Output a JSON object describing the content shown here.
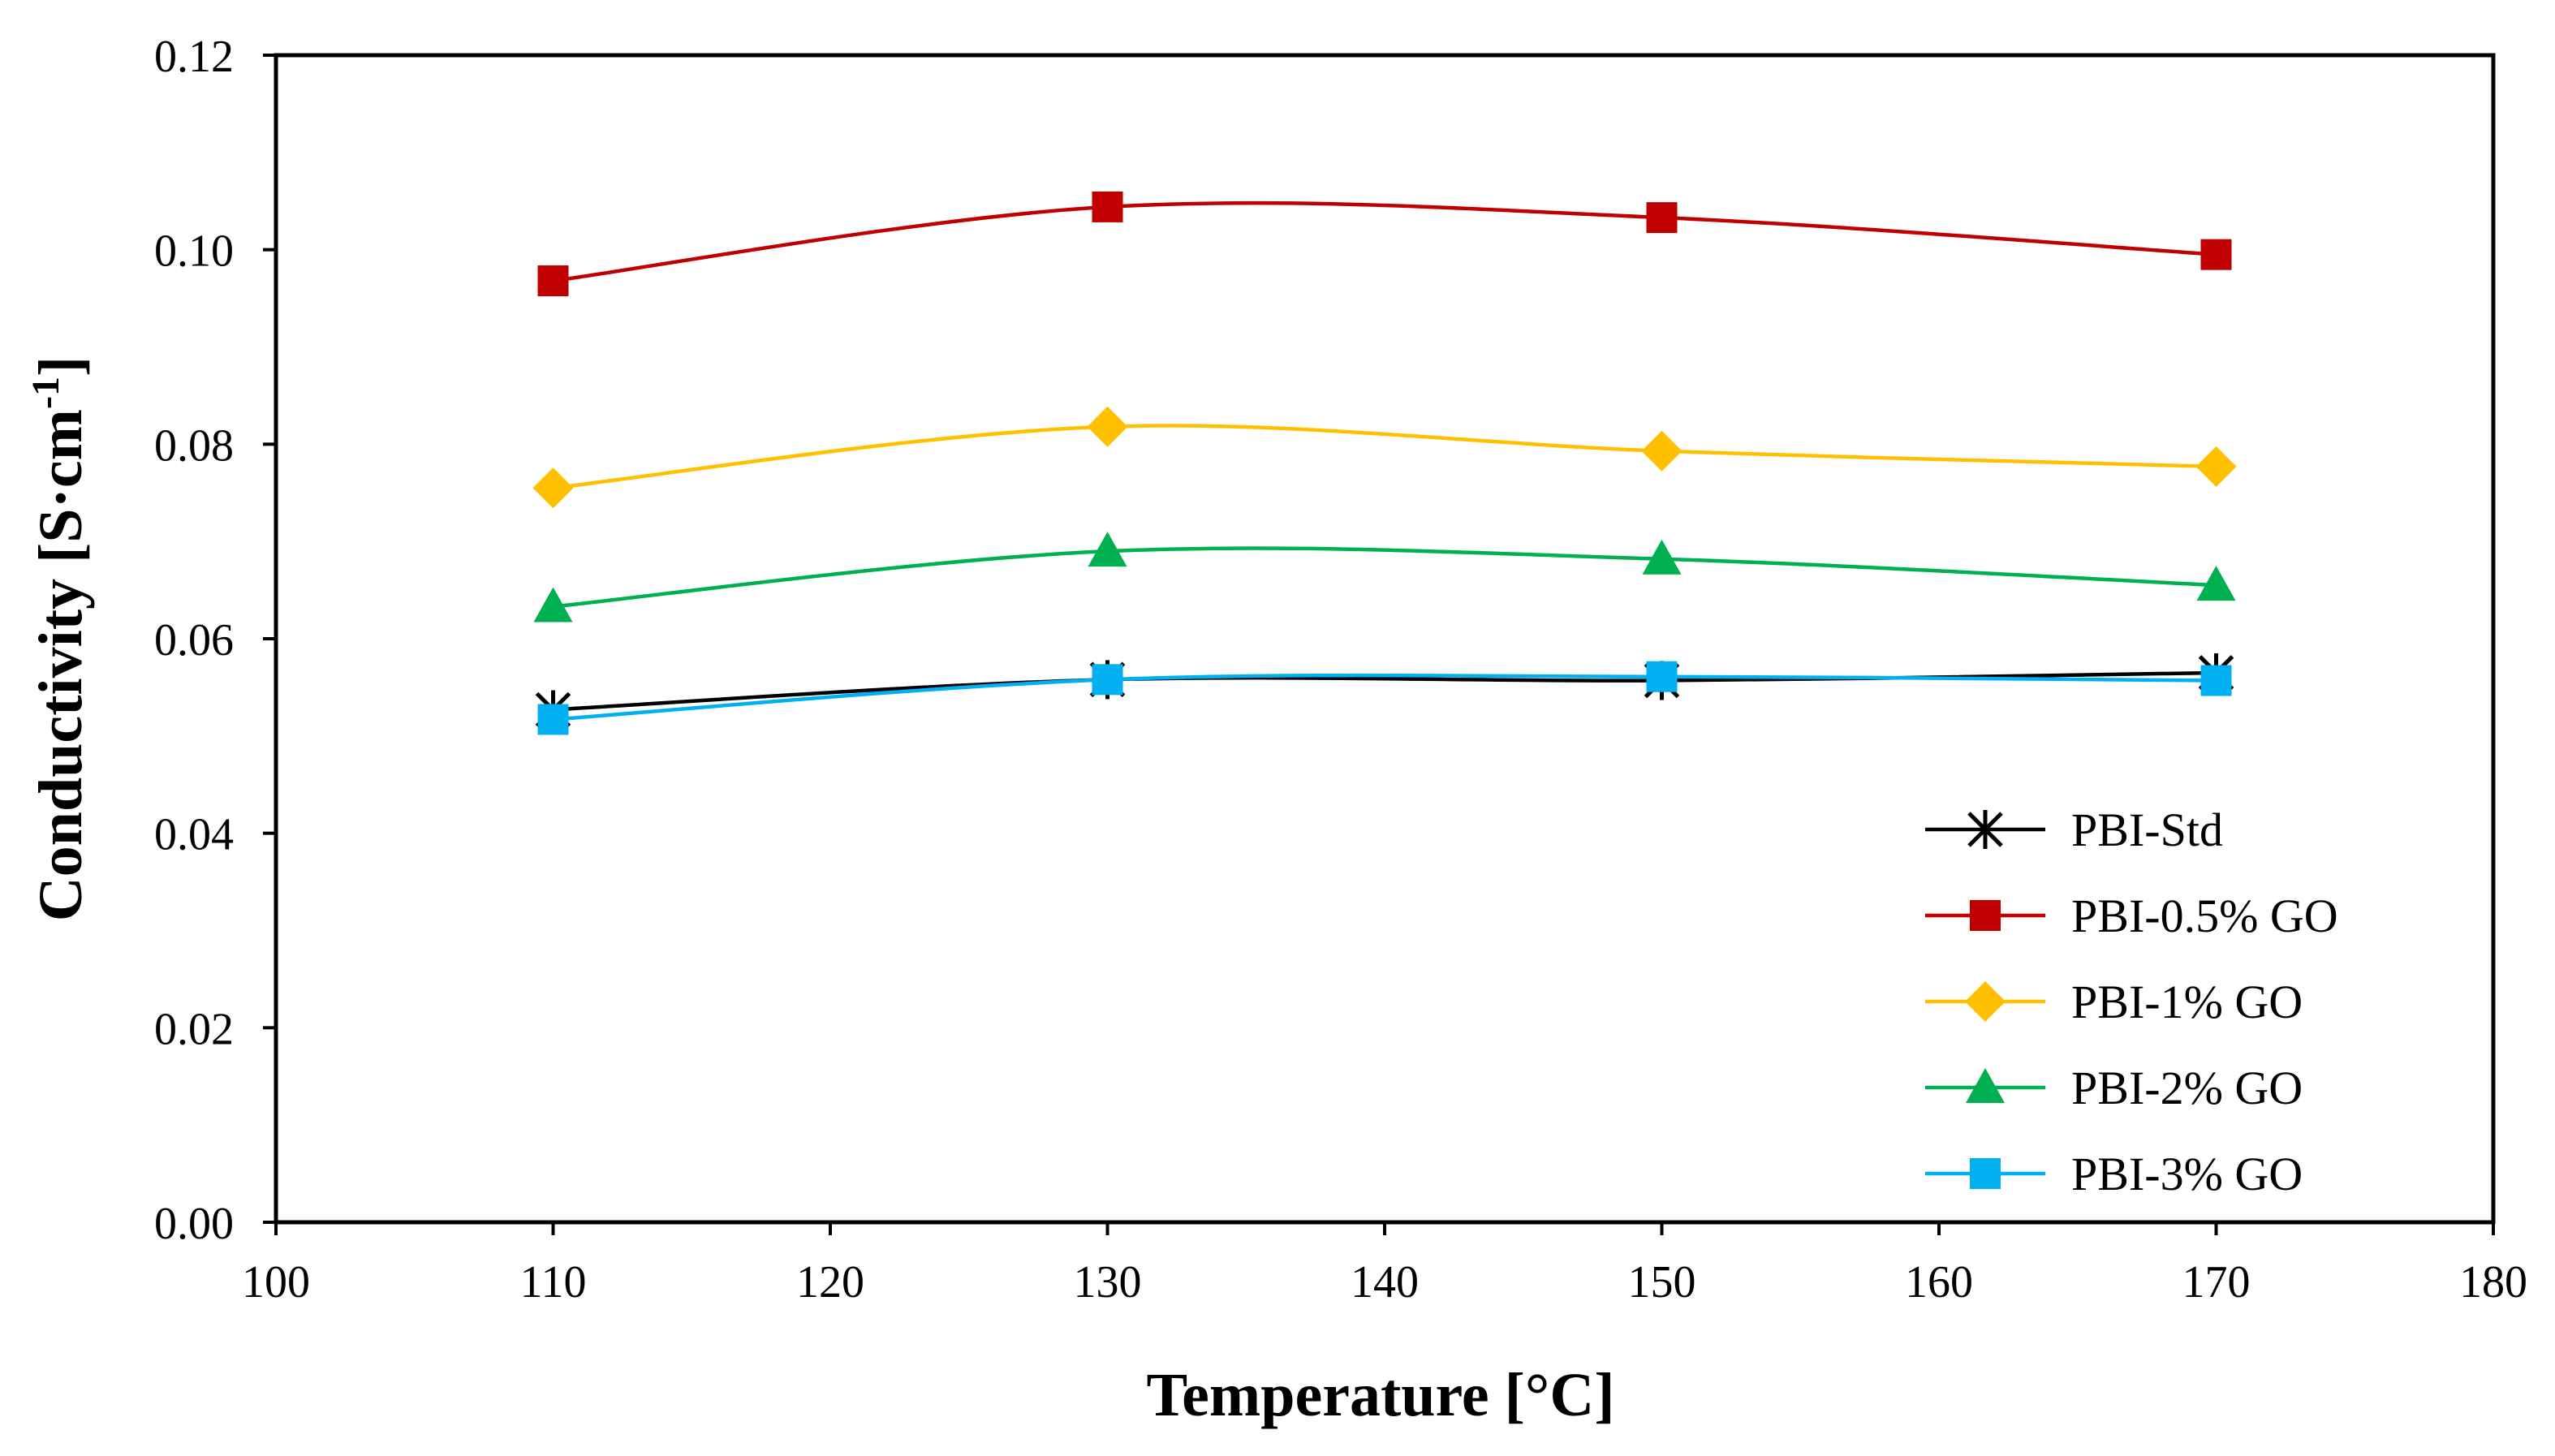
{
  "chart_data": {
    "type": "line",
    "title": "",
    "xlabel": "Temperature [°C]",
    "ylabel": {
      "main": "Conductivity [S·cm",
      "superscript": "-1",
      "close": "]"
    },
    "xlim": [
      100,
      180
    ],
    "ylim": [
      0,
      0.12
    ],
    "x_ticks": [
      100,
      110,
      120,
      130,
      140,
      150,
      160,
      170,
      180
    ],
    "x_tick_labels": [
      "100",
      "110",
      "120",
      "130",
      "140",
      "150",
      "160",
      "170",
      "180"
    ],
    "y_ticks": [
      0,
      0.02,
      0.04,
      0.06,
      0.08,
      0.1,
      0.12
    ],
    "y_tick_labels": [
      "0.00",
      "0.02",
      "0.04",
      "0.06",
      "0.08",
      "0.10",
      "0.12"
    ],
    "grid": false,
    "smooth": true,
    "legend_position": "bottom-right",
    "x": [
      110,
      130,
      150,
      170
    ],
    "series": [
      {
        "name": "PBI-Std",
        "marker": "asterisk",
        "color": "#000000",
        "values": [
          0.0527,
          0.0558,
          0.0557,
          0.0565
        ]
      },
      {
        "name": "PBI-0.5% GO",
        "marker": "square",
        "color": "#C00000",
        "values": [
          0.0968,
          0.1044,
          0.1033,
          0.0995
        ]
      },
      {
        "name": "PBI-1% GO",
        "marker": "diamond",
        "color": "#FFC000",
        "values": [
          0.0755,
          0.0818,
          0.0793,
          0.0777
        ]
      },
      {
        "name": "PBI-2% GO",
        "marker": "triangle",
        "color": "#00B050",
        "values": [
          0.0633,
          0.069,
          0.0682,
          0.0655
        ]
      },
      {
        "name": "PBI-3% GO",
        "marker": "square",
        "color": "#00B0F0",
        "values": [
          0.0517,
          0.0558,
          0.0561,
          0.0557
        ]
      }
    ]
  }
}
